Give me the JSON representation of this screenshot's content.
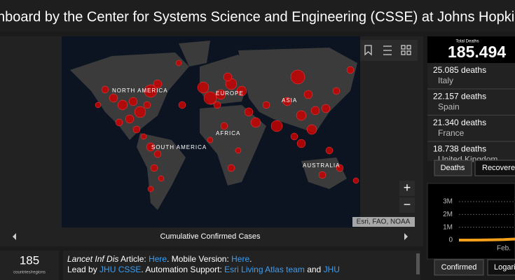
{
  "header": {
    "title": "nboard by the Center for Systems Science and Engineering (CSSE) at Johns Hopkin"
  },
  "map": {
    "labels": [
      "NORTH AMERICA",
      "EUROPE",
      "ASIA",
      "AFRICA",
      "SOUTH AMERICA",
      "AUSTRALIA"
    ],
    "attribution": "Esri, FAO, NOAA",
    "zoom_in": "+",
    "zoom_out": "−",
    "caption": "Cumulative Confirmed Cases"
  },
  "countries": {
    "count": "185",
    "label": "countries/regions"
  },
  "credits": {
    "line1": [
      "Lancet Inf Dis",
      " Article: ",
      "Here",
      ". Mobile Version: ",
      "Here",
      "."
    ],
    "line2": [
      "Lead by ",
      "JHU CSSE",
      ". Automation Support: ",
      "Esri Living Atlas team",
      " and ",
      "JHU"
    ]
  },
  "deaths": {
    "title": "Total Deaths",
    "total": "185.494",
    "items": [
      {
        "value": "25.085 deaths",
        "country": "Italy"
      },
      {
        "value": "22.157 deaths",
        "country": "Spain"
      },
      {
        "value": "21.340 deaths",
        "country": "France"
      },
      {
        "value": "18.738 deaths",
        "country": "United Kingdom"
      }
    ],
    "tabs": [
      "Deaths",
      "Recovered"
    ]
  },
  "chart_data": {
    "type": "line",
    "categories": [
      null,
      null,
      null,
      null,
      "Feb.",
      null
    ],
    "series": [
      {
        "name": "Confirmed",
        "color": "#f5a01a",
        "values": [
          0,
          0,
          10000,
          20000,
          40000,
          80000
        ]
      }
    ],
    "ylim": [
      0,
      3000000
    ],
    "yticks": [
      0,
      {
        "value": 1000000,
        "label": "1M"
      },
      {
        "value": 2000000,
        "label": "2M"
      },
      {
        "value": 3000000,
        "label": "3M"
      }
    ],
    "grid": true
  },
  "chart_tabs": [
    "Confirmed",
    "Logari"
  ]
}
